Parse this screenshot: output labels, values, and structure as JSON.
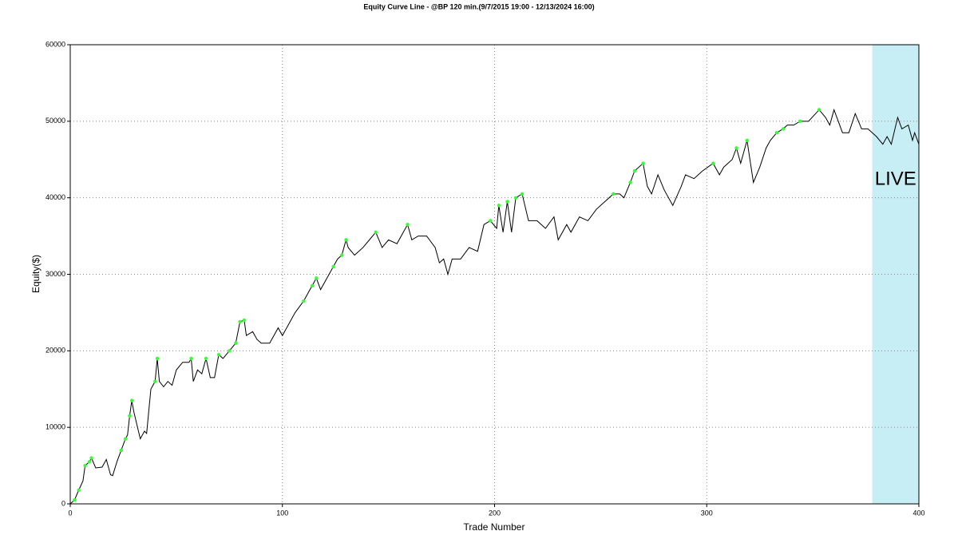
{
  "chart_data": {
    "type": "line",
    "title": "Equity Curve Line - @BP 120 min.(9/7/2015 19:00 - 12/13/2024 16:00)",
    "x_label": "Trade Number",
    "y_label": "Equity($)",
    "xlim": [
      0,
      400
    ],
    "ylim": [
      0,
      60000
    ],
    "xticks": [
      0,
      100,
      200,
      300,
      400
    ],
    "yticks": [
      0,
      10000,
      20000,
      30000,
      40000,
      50000,
      60000
    ],
    "grid": true,
    "live_region": {
      "label": "LIVE",
      "xlim": [
        378,
        400
      ],
      "color": "#c8eef5"
    },
    "series": [
      {
        "color": "#000000",
        "x": [
          0,
          2,
          4,
          6,
          7,
          9,
          10,
          12,
          15,
          17,
          19,
          20,
          22,
          24,
          26,
          27,
          28,
          29,
          30,
          33,
          35,
          36,
          38,
          40,
          41,
          42,
          44,
          46,
          48,
          50,
          53,
          56,
          57,
          58,
          60,
          62,
          64,
          66,
          68,
          70,
          72,
          75,
          78,
          80,
          82,
          83,
          86,
          88,
          90,
          94,
          98,
          100,
          102,
          104,
          106,
          110,
          114,
          116,
          118,
          122,
          124,
          126,
          128,
          130,
          131,
          134,
          138,
          141,
          144,
          147,
          150,
          154,
          157,
          159,
          161,
          164,
          168,
          172,
          174,
          176,
          178,
          180,
          184,
          188,
          192,
          195,
          198,
          201,
          202,
          204,
          206,
          208,
          210,
          213,
          216,
          220,
          224,
          228,
          230,
          234,
          236,
          240,
          244,
          248,
          252,
          256,
          259,
          261,
          264,
          266,
          270,
          272,
          274,
          277,
          280,
          284,
          288,
          290,
          294,
          298,
          303,
          306,
          308,
          312,
          314,
          316,
          319,
          322,
          325,
          328,
          330,
          333,
          336,
          338,
          341,
          344,
          348,
          353,
          356,
          358,
          360,
          362,
          364,
          367,
          370,
          373,
          376,
          380,
          383,
          385,
          387,
          390,
          392,
          395,
          397,
          398,
          400
        ],
        "values": [
          0,
          500,
          1800,
          3000,
          5000,
          5500,
          6000,
          4700,
          4800,
          5800,
          3800,
          3700,
          5500,
          7000,
          8500,
          9000,
          11500,
          13500,
          12000,
          8500,
          9500,
          9200,
          15000,
          16000,
          19000,
          16000,
          15300,
          16000,
          15500,
          17500,
          18500,
          18500,
          19000,
          16000,
          17500,
          17000,
          19000,
          16500,
          16500,
          19500,
          19000,
          20000,
          21000,
          23800,
          24000,
          22000,
          22500,
          21500,
          21000,
          21000,
          23000,
          22000,
          23000,
          24000,
          25000,
          26500,
          28500,
          29500,
          28000,
          30000,
          31000,
          32000,
          32500,
          34500,
          33500,
          32500,
          33500,
          34500,
          35500,
          33500,
          34500,
          34000,
          35500,
          36500,
          34500,
          35000,
          35000,
          33500,
          31500,
          32000,
          30000,
          32000,
          32000,
          33500,
          33000,
          36500,
          37000,
          36000,
          39000,
          35500,
          39500,
          35500,
          40000,
          40500,
          37000,
          37000,
          36000,
          37500,
          34500,
          36500,
          35500,
          37500,
          37000,
          38500,
          39500,
          40500,
          40500,
          40000,
          42000,
          43500,
          44500,
          41500,
          40500,
          43000,
          41000,
          39000,
          41500,
          43000,
          42500,
          43500,
          44500,
          43000,
          44000,
          45000,
          46500,
          44500,
          47500,
          42000,
          44000,
          46500,
          47500,
          48500,
          49000,
          49500,
          49500,
          50000,
          50000,
          51500,
          50500,
          49500,
          51500,
          50000,
          48500,
          48500,
          51000,
          49000,
          49000,
          48000,
          47000,
          48000,
          47000,
          50500,
          49000,
          49500,
          47500,
          48500,
          47000
        ]
      },
      {
        "color": "#33ff33",
        "marker": "dot",
        "x": [
          2,
          4,
          7,
          9,
          10,
          24,
          26,
          28,
          29,
          40,
          41,
          57,
          64,
          70,
          75,
          78,
          80,
          82,
          110,
          114,
          116,
          124,
          128,
          130,
          144,
          159,
          198,
          202,
          206,
          210,
          213,
          256,
          264,
          266,
          270,
          303,
          314,
          319,
          333,
          336,
          344,
          353
        ],
        "values": [
          500,
          1800,
          5000,
          5500,
          6000,
          7000,
          8500,
          11500,
          13500,
          16000,
          19000,
          19000,
          19000,
          19500,
          20000,
          21000,
          23800,
          24000,
          26500,
          28500,
          29500,
          31000,
          32500,
          34500,
          35500,
          36500,
          37000,
          39000,
          39500,
          40000,
          40500,
          40500,
          42000,
          43500,
          44500,
          44500,
          46500,
          47500,
          48500,
          49000,
          50000,
          51500
        ]
      }
    ]
  }
}
